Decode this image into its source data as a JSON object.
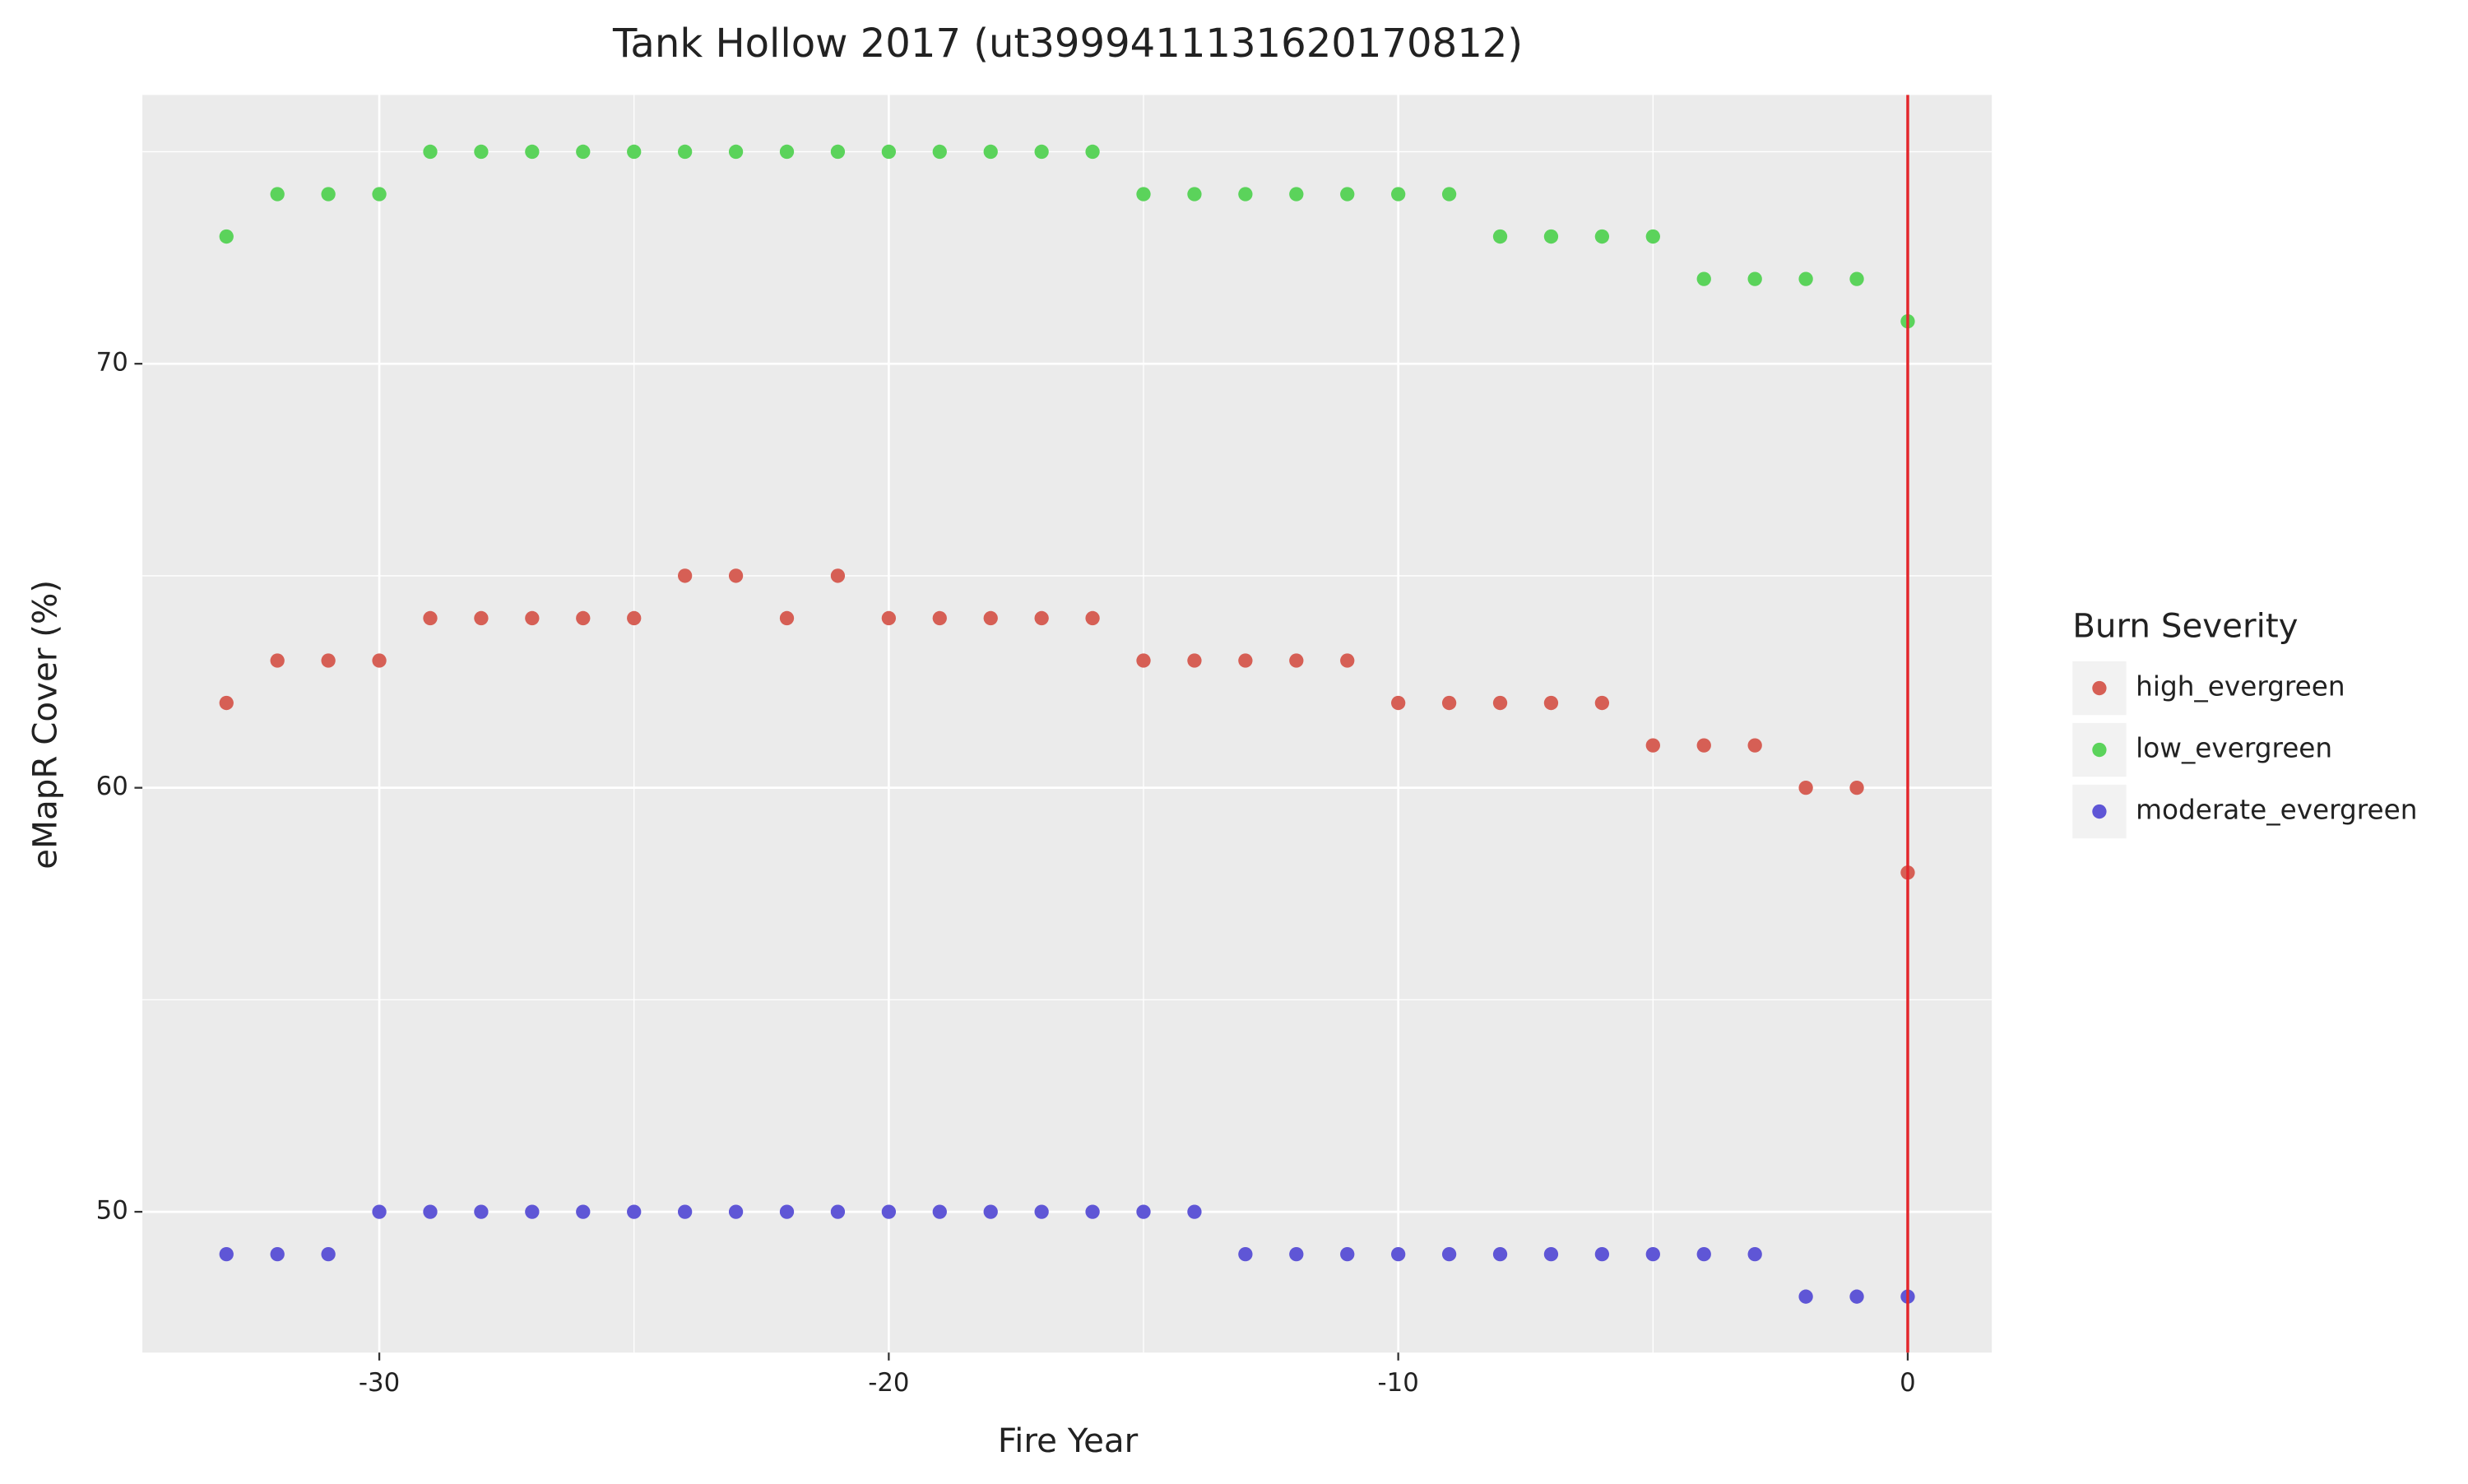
{
  "chart_data": {
    "type": "scatter",
    "title": "Tank Hollow 2017 (ut3999411131620170812)",
    "x_label": "Fire Year",
    "y_label": "eMapR Cover (%)",
    "legend_title": "Burn Severity",
    "legend_position": "right",
    "grid": true,
    "x": [
      -33,
      -32,
      -31,
      -30,
      -29,
      -28,
      -27,
      -26,
      -25,
      -24,
      -23,
      -22,
      -21,
      -20,
      -19,
      -18,
      -17,
      -16,
      -15,
      -14,
      -13,
      -12,
      -11,
      -10,
      -9,
      -8,
      -7,
      -6,
      -5,
      -4,
      -3,
      -2,
      -1,
      0
    ],
    "series": [
      {
        "name": "high_evergreen",
        "color": "#d65f55",
        "values": [
          62,
          63,
          63,
          63,
          64,
          64,
          64,
          64,
          64,
          65,
          65,
          64,
          65,
          64,
          64,
          64,
          64,
          64,
          63,
          63,
          63,
          63,
          63,
          62,
          62,
          62,
          62,
          62,
          61,
          61,
          61,
          60,
          60,
          58
        ]
      },
      {
        "name": "low_evergreen",
        "color": "#5bd35b",
        "values": [
          73,
          74,
          74,
          74,
          75,
          75,
          75,
          75,
          75,
          75,
          75,
          75,
          75,
          75,
          75,
          75,
          75,
          75,
          74,
          74,
          74,
          74,
          74,
          74,
          74,
          73,
          73,
          73,
          73,
          72,
          72,
          72,
          72,
          71
        ]
      },
      {
        "name": "moderate_evergreen",
        "color": "#5f56d6",
        "values": [
          49,
          49,
          49,
          50,
          50,
          50,
          50,
          50,
          50,
          50,
          50,
          50,
          50,
          50,
          50,
          50,
          50,
          50,
          50,
          50,
          49,
          49,
          49,
          49,
          49,
          49,
          49,
          49,
          49,
          49,
          49,
          48,
          48,
          48
        ]
      }
    ],
    "xlim": [
      -34.65,
      1.65
    ],
    "ylim": [
      46.68,
      76.34
    ],
    "xticks": [
      -30,
      -20,
      -10,
      0
    ],
    "yticks": [
      50,
      60,
      70
    ],
    "xminor": [
      -25,
      -15,
      -5
    ],
    "yminor": [
      55,
      65,
      75
    ],
    "vline": 0,
    "vline_color": "#e3262b"
  }
}
